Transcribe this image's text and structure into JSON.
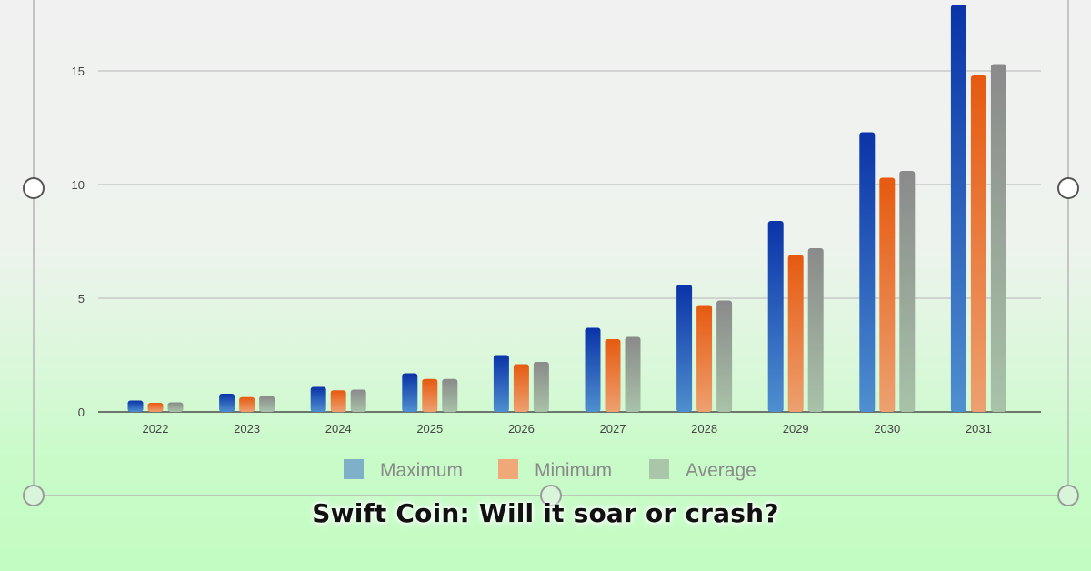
{
  "caption": "Swift Coin:  Will it soar or crash?",
  "chart_data": {
    "type": "bar",
    "categories": [
      "2022",
      "2023",
      "2024",
      "2025",
      "2026",
      "2027",
      "2028",
      "2029",
      "2030",
      "2031"
    ],
    "series": [
      {
        "name": "Maximum",
        "values": [
          0.5,
          0.8,
          1.1,
          1.7,
          2.5,
          3.7,
          5.6,
          8.4,
          12.3,
          17.9
        ]
      },
      {
        "name": "Minimum",
        "values": [
          0.4,
          0.65,
          0.95,
          1.45,
          2.1,
          3.2,
          4.7,
          6.9,
          10.3,
          14.8
        ]
      },
      {
        "name": "Average",
        "values": [
          0.42,
          0.7,
          0.98,
          1.45,
          2.2,
          3.3,
          4.9,
          7.2,
          10.6,
          15.3
        ]
      }
    ],
    "yticks": [
      "0",
      "5",
      "10",
      "15"
    ],
    "ylim": [
      0,
      18
    ],
    "grid": true,
    "legend_position": "bottom",
    "colors": {
      "Maximum": "#1f4eb4",
      "Minimum": "#e8641e",
      "Average": "#8e8e8e",
      "Maximum_legend": "#7fb0c7",
      "Minimum_legend": "#f0a878",
      "Average_legend": "#a9c6a9"
    }
  }
}
